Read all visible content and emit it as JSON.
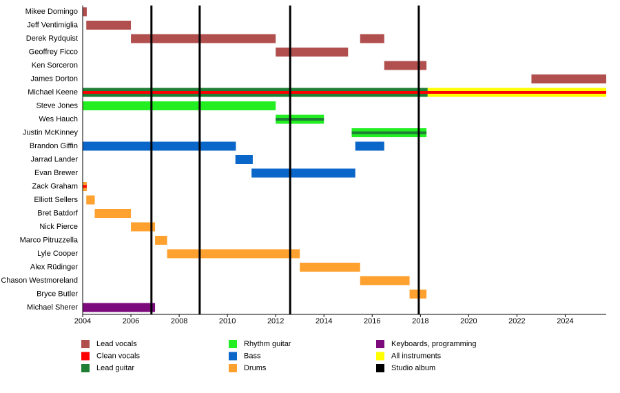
{
  "chart_data": {
    "type": "timeline",
    "categories": [
      "Mikee Domingo",
      "Jeff Ventimiglia",
      "Derek Rydquist",
      "Geoffrey Ficco",
      "Ken Sorceron",
      "James Dorton",
      "Michael Keene",
      "Steve Jones",
      "Wes Hauch",
      "Justin McKinney",
      "Brandon Giffin",
      "Jarrad Lander",
      "Evan Brewer",
      "Zack Graham",
      "Elliott Sellers",
      "Bret Batdorf",
      "Nick Pierce",
      "Marco Pitruzzella",
      "Lyle Cooper",
      "Alex Rüdinger",
      "Chason Westmoreland",
      "Bryce Butler",
      "Michael Sherer"
    ],
    "series": [
      {
        "name": "Lead vocals",
        "color": "#b14f4f",
        "values": [
          [
            [
              2004,
              2004.17
            ]
          ],
          [
            [
              2004.15,
              2006
            ]
          ],
          [
            [
              2006,
              2012
            ],
            [
              2015.5,
              2016.5
            ]
          ],
          [
            [
              2012,
              2015
            ]
          ],
          [
            [
              2016.5,
              2018.25
            ]
          ],
          [
            [
              2022.6,
              2025.7
            ]
          ],
          null,
          null,
          null,
          null,
          null,
          null,
          null,
          null,
          null,
          null,
          null,
          null,
          null,
          null,
          null,
          null,
          null
        ]
      },
      {
        "name": "Clean vocals",
        "color": "#ff0000",
        "values": [
          null,
          null,
          null,
          null,
          null,
          null,
          [
            [
              2004,
              2025.7
            ]
          ],
          null,
          null,
          null,
          null,
          null,
          null,
          [
            [
              2004,
              2004.17
            ]
          ],
          null,
          null,
          null,
          null,
          null,
          null,
          null,
          null,
          null
        ]
      },
      {
        "name": "Lead guitar",
        "color": "#1e7f35",
        "values": [
          null,
          null,
          null,
          null,
          null,
          null,
          [
            [
              2004,
              2018.3
            ]
          ],
          null,
          [
            [
              2012,
              2014
            ]
          ],
          [
            [
              2015.15,
              2018.25
            ]
          ],
          null,
          null,
          null,
          null,
          null,
          null,
          null,
          null,
          null,
          null,
          null,
          null,
          null
        ]
      },
      {
        "name": "Rhythm guitar",
        "color": "#22ee22",
        "values": [
          null,
          null,
          null,
          null,
          null,
          null,
          null,
          [
            [
              2004,
              2012
            ]
          ],
          [
            [
              2012,
              2014
            ]
          ],
          [
            [
              2015.15,
              2018.25
            ]
          ],
          null,
          null,
          null,
          null,
          null,
          null,
          null,
          null,
          null,
          null,
          null,
          null,
          null
        ]
      },
      {
        "name": "Bass",
        "color": "#0a66c8",
        "values": [
          null,
          null,
          null,
          null,
          null,
          null,
          null,
          null,
          null,
          null,
          [
            [
              2004,
              2010.35
            ],
            [
              2015.3,
              2016.5
            ]
          ],
          [
            [
              2010.33,
              2011.05
            ]
          ],
          [
            [
              2011,
              2015.3
            ]
          ],
          null,
          null,
          null,
          null,
          null,
          null,
          null,
          null,
          null,
          null
        ]
      },
      {
        "name": "Drums",
        "color": "#ffa12e",
        "values": [
          null,
          null,
          null,
          null,
          null,
          null,
          null,
          null,
          null,
          null,
          null,
          null,
          null,
          [
            [
              2004,
              2004.17
            ]
          ],
          [
            [
              2004.15,
              2004.5
            ]
          ],
          [
            [
              2004.5,
              2006
            ]
          ],
          [
            [
              2006,
              2007
            ]
          ],
          [
            [
              2007,
              2007.5
            ]
          ],
          [
            [
              2007.5,
              2013
            ]
          ],
          [
            [
              2013,
              2015.5
            ]
          ],
          [
            [
              2015.5,
              2017.55
            ]
          ],
          [
            [
              2017.55,
              2018.25
            ]
          ],
          null
        ]
      },
      {
        "name": "Keyboards, programming",
        "color": "#7d0a7d",
        "values": [
          null,
          null,
          null,
          null,
          null,
          null,
          null,
          null,
          null,
          null,
          null,
          null,
          null,
          null,
          null,
          null,
          null,
          null,
          null,
          null,
          null,
          null,
          [
            [
              2004,
              2007
            ]
          ]
        ]
      },
      {
        "name": "All instruments",
        "color": "#ffff00",
        "values": [
          null,
          null,
          null,
          null,
          null,
          null,
          [
            [
              2018.3,
              2025.7
            ]
          ],
          null,
          null,
          null,
          null,
          null,
          null,
          null,
          null,
          null,
          null,
          null,
          null,
          null,
          null,
          null,
          null
        ]
      }
    ],
    "albums": {
      "name": "Studio album",
      "color": "#000000",
      "values": [
        2006.85,
        2008.85,
        2012.6,
        2017.93
      ]
    },
    "xlim": [
      2004,
      2025.7
    ],
    "xticks": [
      2004,
      2006,
      2008,
      2010,
      2012,
      2014,
      2016,
      2018,
      2020,
      2022,
      2024
    ]
  }
}
